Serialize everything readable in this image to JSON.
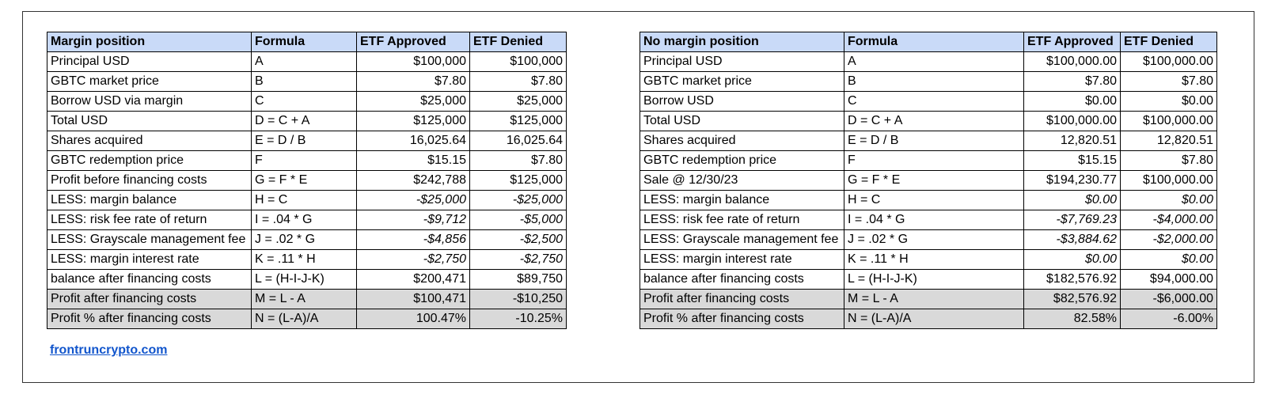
{
  "left_table": {
    "headers": [
      "Margin position",
      "Formula",
      "ETF Approved",
      "ETF Denied"
    ],
    "rows": [
      {
        "label": "Principal USD",
        "formula": "A",
        "approved": "$100,000",
        "denied": "$100,000",
        "italic": false,
        "shaded": false
      },
      {
        "label": "GBTC market price",
        "formula": "B",
        "approved": "$7.80",
        "denied": "$7.80",
        "italic": false,
        "shaded": false
      },
      {
        "label": "Borrow USD via margin",
        "formula": "C",
        "approved": "$25,000",
        "denied": "$25,000",
        "italic": false,
        "shaded": false
      },
      {
        "label": "Total USD",
        "formula": "D = C + A",
        "approved": "$125,000",
        "denied": "$125,000",
        "italic": false,
        "shaded": false
      },
      {
        "label": "Shares acquired",
        "formula": "E = D / B",
        "approved": "16,025.64",
        "denied": "16,025.64",
        "italic": false,
        "shaded": false
      },
      {
        "label": "GBTC redemption price",
        "formula": "F",
        "approved": "$15.15",
        "denied": "$7.80",
        "italic": false,
        "shaded": false
      },
      {
        "label": "Profit before financing costs",
        "formula": "G = F * E",
        "approved": "$242,788",
        "denied": "$125,000",
        "italic": false,
        "shaded": false
      },
      {
        "label": "LESS: margin balance",
        "formula": "H = C",
        "approved": "-$25,000",
        "denied": "-$25,000",
        "italic": true,
        "shaded": false
      },
      {
        "label": "LESS: risk fee rate of return",
        "formula": "I = .04 * G",
        "approved": "-$9,712",
        "denied": "-$5,000",
        "italic": true,
        "shaded": false
      },
      {
        "label": "LESS: Grayscale management fee",
        "formula": "J = .02 * G",
        "approved": "-$4,856",
        "denied": "-$2,500",
        "italic": true,
        "shaded": false
      },
      {
        "label": "LESS: margin interest rate",
        "formula": "K = .11 * H",
        "approved": "-$2,750",
        "denied": "-$2,750",
        "italic": true,
        "shaded": false
      },
      {
        "label": "balance after financing costs",
        "formula": "L = (H-I-J-K)",
        "approved": "$200,471",
        "denied": "$89,750",
        "italic": false,
        "shaded": false
      },
      {
        "label": "Profit after financing costs",
        "formula": "M = L - A",
        "approved": "$100,471",
        "denied": "-$10,250",
        "italic": false,
        "shaded": true
      },
      {
        "label": "Profit % after financing costs",
        "formula": "N = (L-A)/A",
        "approved": "100.47%",
        "denied": "-10.25%",
        "italic": false,
        "shaded": true
      }
    ]
  },
  "right_table": {
    "headers": [
      "No margin position",
      "Formula",
      "ETF Approved",
      "ETF Denied"
    ],
    "rows": [
      {
        "label": "Principal USD",
        "formula": "A",
        "approved": "$100,000.00",
        "denied": "$100,000.00",
        "italic": false,
        "shaded": false
      },
      {
        "label": "GBTC market price",
        "formula": "B",
        "approved": "$7.80",
        "denied": "$7.80",
        "italic": false,
        "shaded": false
      },
      {
        "label": "Borrow USD",
        "formula": "C",
        "approved": "$0.00",
        "denied": "$0.00",
        "italic": false,
        "shaded": false
      },
      {
        "label": "Total USD",
        "formula": "D = C + A",
        "approved": "$100,000.00",
        "denied": "$100,000.00",
        "italic": false,
        "shaded": false
      },
      {
        "label": "Shares acquired",
        "formula": "E = D / B",
        "approved": "12,820.51",
        "denied": "12,820.51",
        "italic": false,
        "shaded": false
      },
      {
        "label": "GBTC redemption price",
        "formula": "F",
        "approved": "$15.15",
        "denied": "$7.80",
        "italic": false,
        "shaded": false
      },
      {
        "label": "Sale @ 12/30/23",
        "formula": "G = F * E",
        "approved": "$194,230.77",
        "denied": "$100,000.00",
        "italic": false,
        "shaded": false
      },
      {
        "label": "LESS: margin balance",
        "formula": "H = C",
        "approved": "$0.00",
        "denied": "$0.00",
        "italic": true,
        "shaded": false
      },
      {
        "label": "LESS: risk fee rate of return",
        "formula": "I = .04 * G",
        "approved": "-$7,769.23",
        "denied": "-$4,000.00",
        "italic": true,
        "shaded": false
      },
      {
        "label": "LESS: Grayscale management fee",
        "formula": "J = .02 * G",
        "approved": "-$3,884.62",
        "denied": "-$2,000.00",
        "italic": true,
        "shaded": false
      },
      {
        "label": "LESS: margin interest rate",
        "formula": "K = .11 * H",
        "approved": "$0.00",
        "denied": "$0.00",
        "italic": true,
        "shaded": false
      },
      {
        "label": "balance after financing costs",
        "formula": "L = (H-I-J-K)",
        "approved": "$182,576.92",
        "denied": "$94,000.00",
        "italic": false,
        "shaded": false
      },
      {
        "label": "Profit after financing costs",
        "formula": "M = L - A",
        "approved": "$82,576.92",
        "denied": "-$6,000.00",
        "italic": false,
        "shaded": true
      },
      {
        "label": "Profit % after financing costs",
        "formula": "N = (L-A)/A",
        "approved": "82.58%",
        "denied": "-6.00%",
        "italic": false,
        "shaded": true
      }
    ]
  },
  "footer": {
    "link_text": "frontruncrypto.com"
  },
  "colors": {
    "header_bg": "#c9daf8",
    "shaded_bg": "#d9d9d9",
    "link": "#1155cc"
  }
}
